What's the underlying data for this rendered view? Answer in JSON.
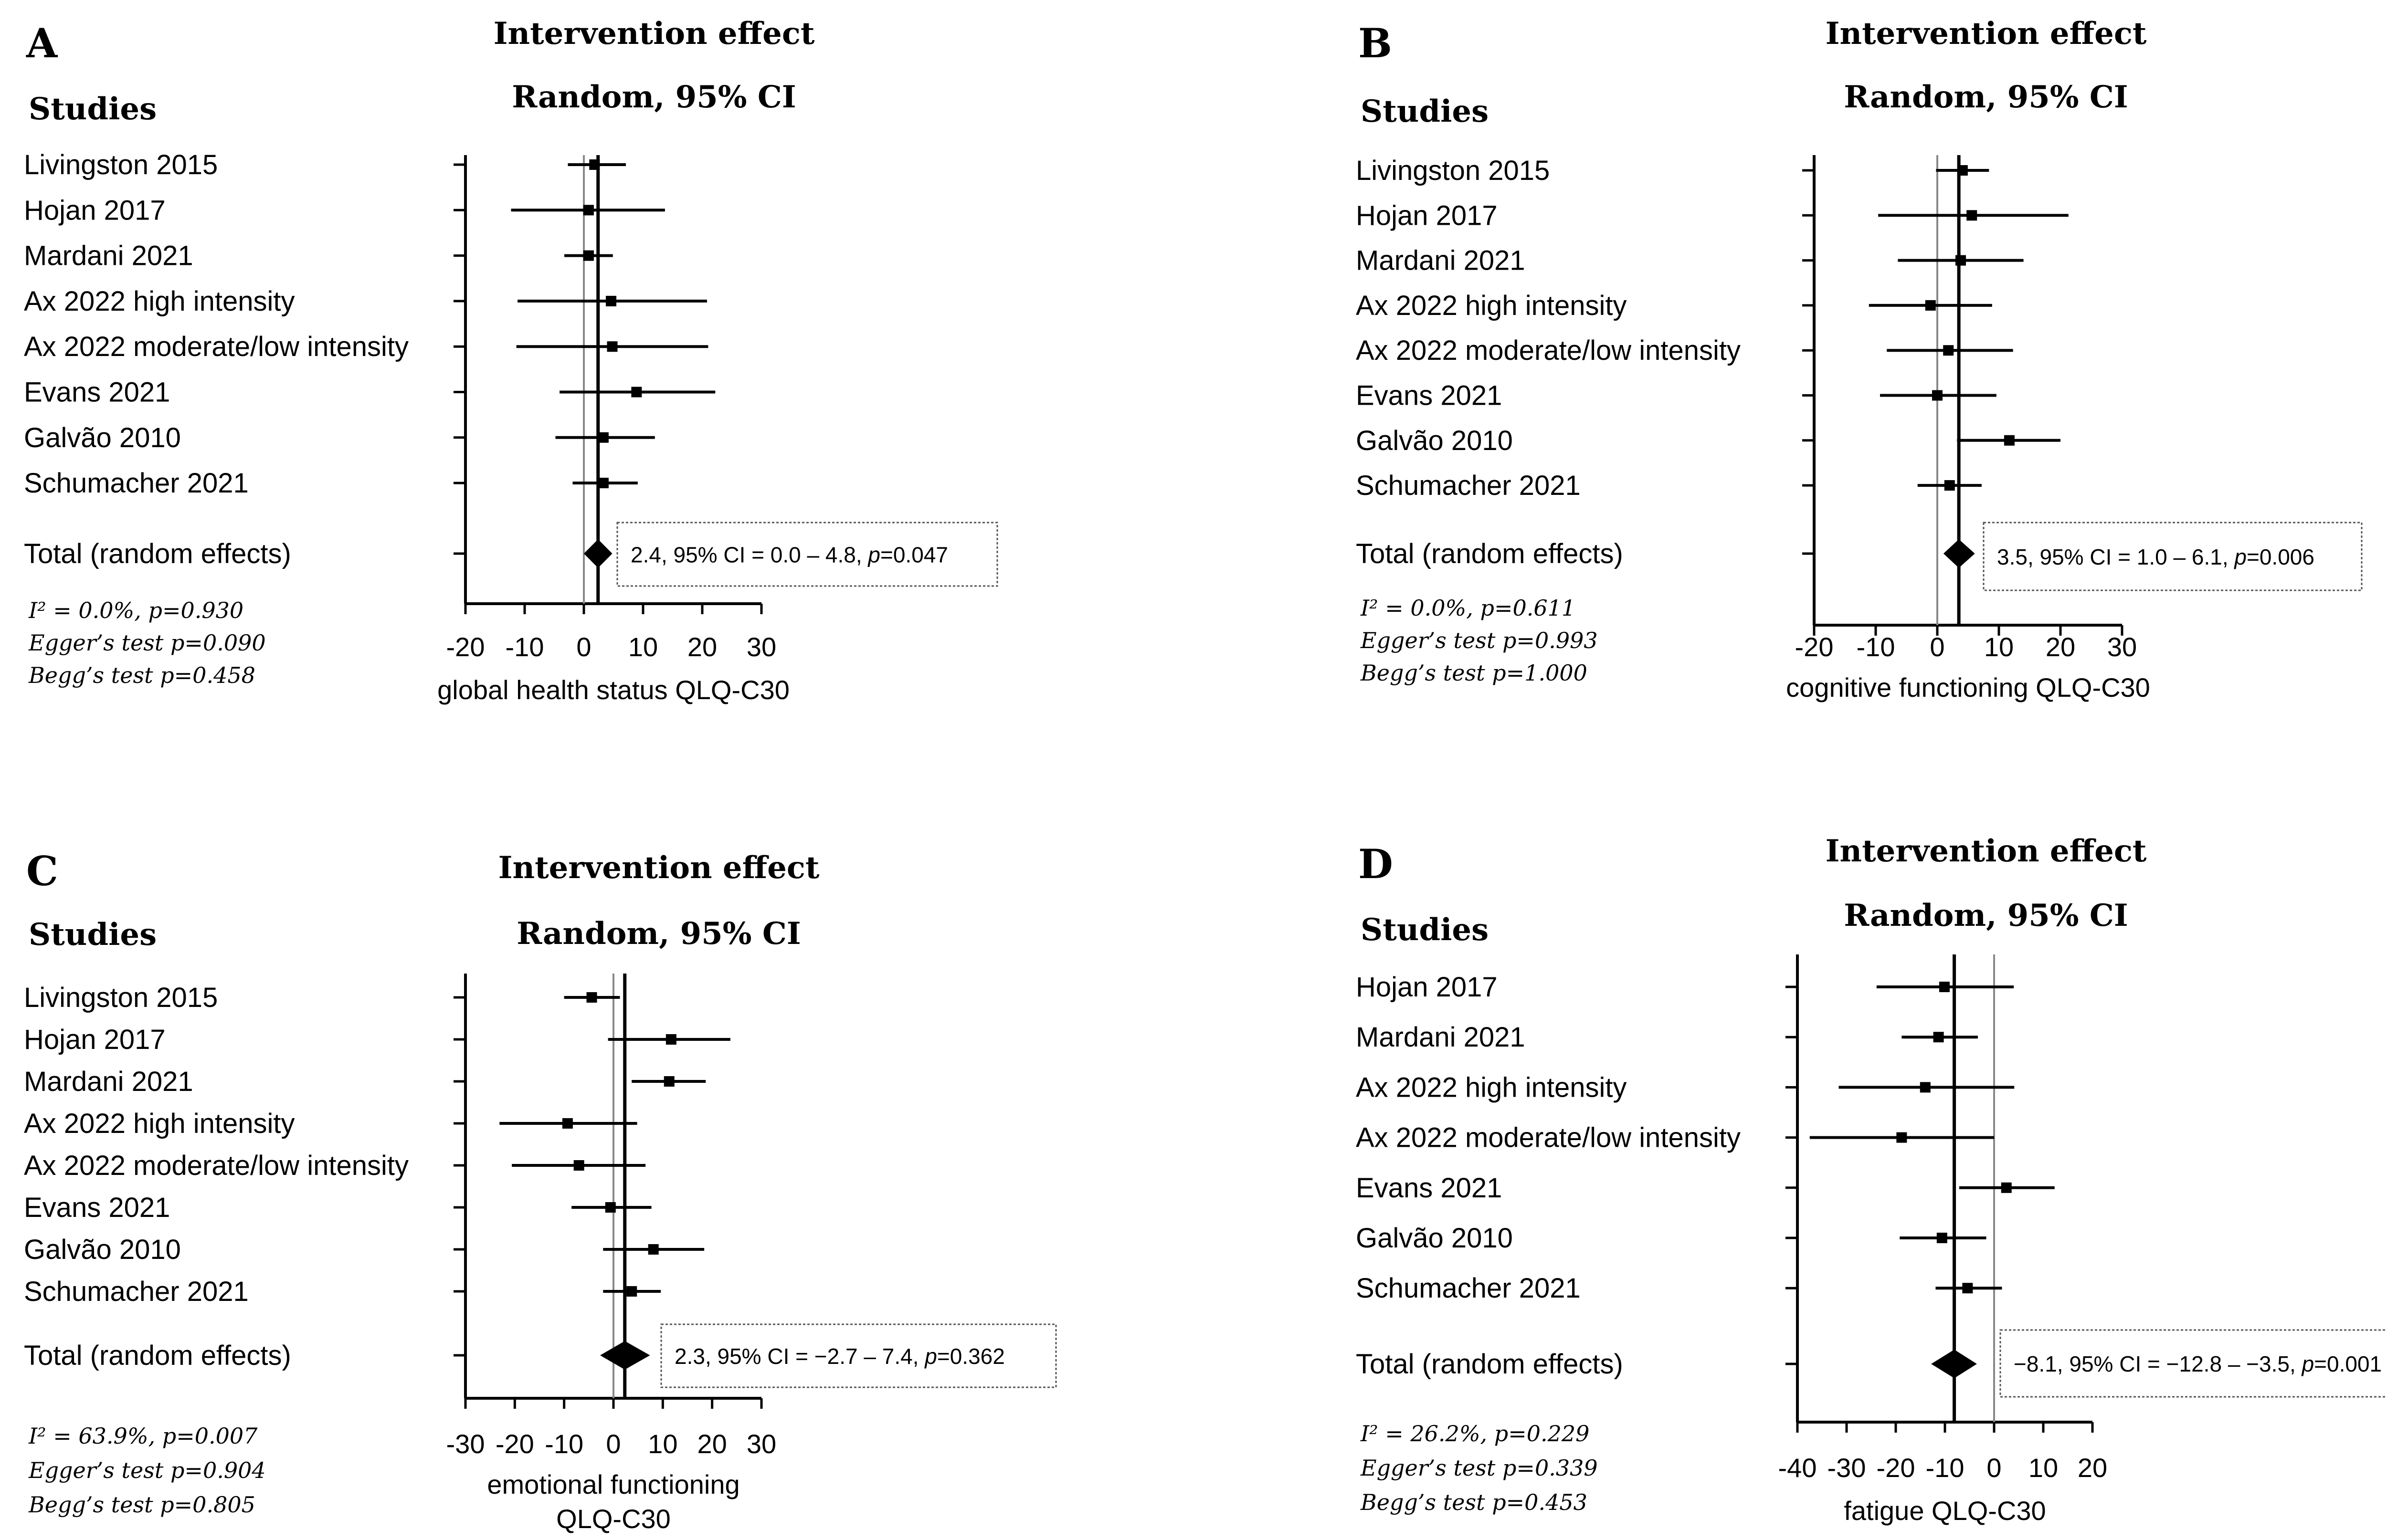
{
  "figure": {
    "background": "#ffffff",
    "ink": "#000000",
    "zero_line": "#888888",
    "box_border": "#555555"
  },
  "chart_data": [
    {
      "type": "forest",
      "panel_label": "A",
      "header_line1": "Intervention effect",
      "header_line2": "Random, 95% CI",
      "studies_header": "Studies",
      "xlabel_lines": [
        "global health status QLQ-C30"
      ],
      "xlim": [
        -20,
        30
      ],
      "xticks": [
        -20,
        -10,
        0,
        10,
        20,
        30
      ],
      "studies": [
        {
          "name": "Livingston 2015",
          "est": 1.8,
          "lo": -2.7,
          "hi": 7.1
        },
        {
          "name": "Hojan 2017",
          "est": 0.8,
          "lo": -12.3,
          "hi": 13.7
        },
        {
          "name": "Mardani 2021",
          "est": 0.8,
          "lo": -3.3,
          "hi": 4.9
        },
        {
          "name": "Ax 2022 high intensity",
          "est": 4.6,
          "lo": -11.2,
          "hi": 20.8
        },
        {
          "name": "Ax 2022 moderate/low intensity",
          "est": 4.8,
          "lo": -11.4,
          "hi": 21.0
        },
        {
          "name": "Evans 2021",
          "est": 8.9,
          "lo": -4.1,
          "hi": 22.2
        },
        {
          "name": "Galvão 2010",
          "est": 3.3,
          "lo": -4.8,
          "hi": 12.0
        },
        {
          "name": "Schumacher 2021",
          "est": 3.3,
          "lo": -1.9,
          "hi": 9.1
        }
      ],
      "total": {
        "label": "Total (random effects)",
        "est": 2.4,
        "lo": 0.0,
        "hi": 4.8,
        "text_pre": "2.4, 95% CI = 0.0 – 4.8, ",
        "text_p": "p",
        "text_post": "=0.047"
      },
      "stats": [
        "I² = 0.0%, p=0.930",
        "Egger’s test p=0.090",
        "Begg’s test p=0.458"
      ]
    },
    {
      "type": "forest",
      "panel_label": "B",
      "header_line1": "Intervention effect",
      "header_line2": "Random, 95% CI",
      "studies_header": "Studies",
      "xlabel_lines": [
        "cognitive functioning QLQ-C30"
      ],
      "xlim": [
        -20,
        30
      ],
      "xticks": [
        -20,
        -10,
        0,
        10,
        20,
        30
      ],
      "studies": [
        {
          "name": "Livingston 2015",
          "est": 4.1,
          "lo": -0.2,
          "hi": 8.4
        },
        {
          "name": "Hojan 2017",
          "est": 5.6,
          "lo": -9.6,
          "hi": 21.3
        },
        {
          "name": "Mardani 2021",
          "est": 3.8,
          "lo": -6.4,
          "hi": 14.0
        },
        {
          "name": "Ax 2022 high intensity",
          "est": -1.1,
          "lo": -11.1,
          "hi": 8.9
        },
        {
          "name": "Ax 2022 moderate/low intensity",
          "est": 1.8,
          "lo": -8.2,
          "hi": 12.3
        },
        {
          "name": "Evans 2021",
          "est": 0.0,
          "lo": -9.3,
          "hi": 9.6
        },
        {
          "name": "Galvão 2010",
          "est": 11.7,
          "lo": 3.2,
          "hi": 20.0
        },
        {
          "name": "Schumacher 2021",
          "est": 2.0,
          "lo": -3.2,
          "hi": 7.2
        }
      ],
      "total": {
        "label": "Total (random effects)",
        "est": 3.5,
        "lo": 1.0,
        "hi": 6.1,
        "text_pre": "3.5, 95% CI = 1.0 – 6.1, ",
        "text_p": "p",
        "text_post": "=0.006"
      },
      "stats": [
        "I² = 0.0%, p=0.611",
        "Egger’s test p=0.993",
        "Begg’s test p=1.000"
      ]
    },
    {
      "type": "forest",
      "panel_label": "C",
      "header_line1": "Intervention effect",
      "header_line2": "Random, 95% CI",
      "studies_header": "Studies",
      "xlabel_lines": [
        "emotional functioning",
        "QLQ-C30"
      ],
      "xlim": [
        -30,
        30
      ],
      "xticks": [
        -30,
        -20,
        -10,
        0,
        10,
        20,
        30
      ],
      "studies": [
        {
          "name": "Livingston 2015",
          "est": -4.4,
          "lo": -10.0,
          "hi": 1.3
        },
        {
          "name": "Hojan 2017",
          "est": 11.7,
          "lo": -1.1,
          "hi": 23.7
        },
        {
          "name": "Mardani 2021",
          "est": 11.3,
          "lo": 3.7,
          "hi": 18.7
        },
        {
          "name": "Ax 2022 high intensity",
          "est": -9.3,
          "lo": -23.1,
          "hi": 4.8
        },
        {
          "name": "Ax 2022 moderate/low intensity",
          "est": -7.0,
          "lo": -20.6,
          "hi": 6.5
        },
        {
          "name": "Evans 2021",
          "est": -0.6,
          "lo": -8.5,
          "hi": 7.7
        },
        {
          "name": "Galvão 2010",
          "est": 8.1,
          "lo": -2.1,
          "hi": 18.4
        },
        {
          "name": "Schumacher 2021",
          "est": 3.7,
          "lo": -2.1,
          "hi": 9.6
        }
      ],
      "total": {
        "label": "Total (random effects)",
        "est": 2.3,
        "lo": -2.7,
        "hi": 7.4,
        "text_pre": "2.3, 95% CI = −2.7 – 7.4, ",
        "text_p": "p",
        "text_post": "=0.362"
      },
      "stats": [
        "I² = 63.9%, p=0.007",
        "Egger’s test p=0.904",
        "Begg’s test p=0.805"
      ]
    },
    {
      "type": "forest",
      "panel_label": "D",
      "header_line1": "Intervention effect",
      "header_line2": "Random, 95% CI",
      "studies_header": "Studies",
      "xlabel_lines": [
        "fatigue QLQ-C30"
      ],
      "xlim": [
        -40,
        20
      ],
      "xticks": [
        -40,
        -30,
        -20,
        -10,
        0,
        10,
        20
      ],
      "studies": [
        {
          "name": "Hojan 2017",
          "est": -10.1,
          "lo": -23.9,
          "hi": 4.0
        },
        {
          "name": "Mardani 2021",
          "est": -11.3,
          "lo": -18.8,
          "hi": -3.3
        },
        {
          "name": "Ax 2022 high intensity",
          "est": -14.0,
          "lo": -31.6,
          "hi": 4.1
        },
        {
          "name": "Ax 2022 moderate/low intensity",
          "est": -18.8,
          "lo": -37.5,
          "hi": 0.0
        },
        {
          "name": "Evans 2021",
          "est": 2.5,
          "lo": -7.1,
          "hi": 12.3
        },
        {
          "name": "Galvão 2010",
          "est": -10.6,
          "lo": -19.2,
          "hi": -1.6
        },
        {
          "name": "Schumacher 2021",
          "est": -5.4,
          "lo": -11.9,
          "hi": 1.6
        }
      ],
      "total": {
        "label": "Total (random effects)",
        "est": -8.1,
        "lo": -12.8,
        "hi": -3.5,
        "text_pre": "−8.1, 95% CI = −12.8 – −3.5, ",
        "text_p": "p",
        "text_post": "=0.001"
      },
      "stats": [
        "I² = 26.2%, p=0.229",
        "Egger’s test p=0.339",
        "Begg’s test p=0.453"
      ]
    }
  ]
}
